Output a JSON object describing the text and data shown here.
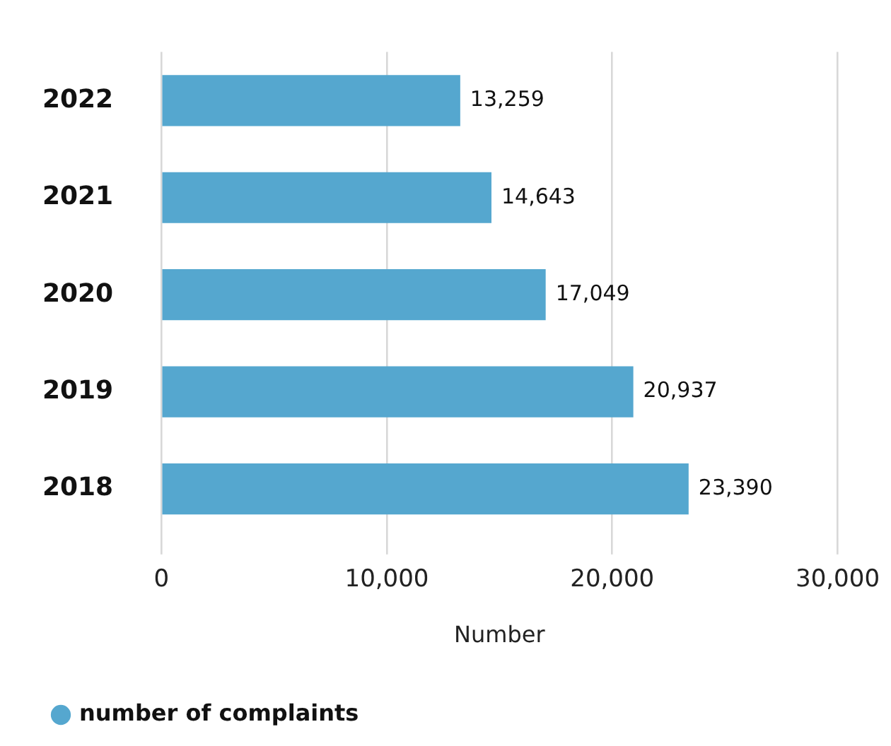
{
  "chart_data": {
    "type": "bar",
    "orientation": "horizontal",
    "categories": [
      "2022",
      "2021",
      "2020",
      "2019",
      "2018"
    ],
    "series": [
      {
        "name": "number of complaints",
        "color": "#55a7cf",
        "values": [
          13259,
          14643,
          17049,
          20937,
          23390
        ],
        "value_labels": [
          "13,259",
          "14,643",
          "17,049",
          "20,937",
          "23,390"
        ]
      }
    ],
    "xlabel": "Number",
    "xlim": [
      0,
      30000
    ],
    "xticks": [
      {
        "value": 0,
        "label": "0"
      },
      {
        "value": 10000,
        "label": "10,000"
      },
      {
        "value": 20000,
        "label": "20,000"
      },
      {
        "value": 30000,
        "label": "30,000"
      }
    ],
    "grid": "x",
    "legend": "bottom left"
  }
}
